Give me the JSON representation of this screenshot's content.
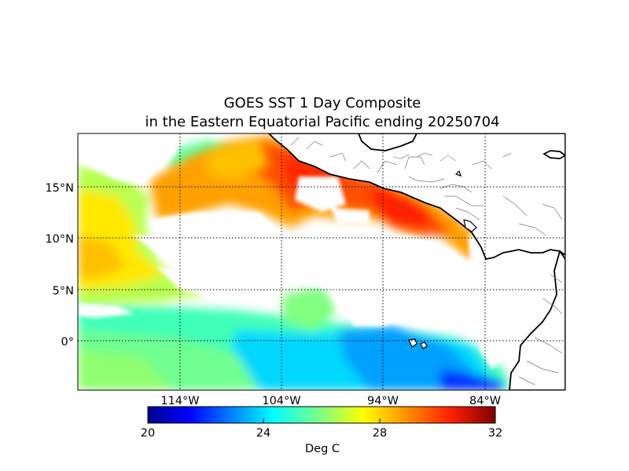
{
  "title": {
    "line1": "GOES SST 1 Day Composite",
    "line2": "in the Eastern Equatorial Pacific ending 20250704"
  },
  "axes": {
    "lat_ticks": [
      {
        "value": 15,
        "label": "15°N"
      },
      {
        "value": 10,
        "label": "10°N"
      },
      {
        "value": 5,
        "label": "5°N"
      },
      {
        "value": 0,
        "label": "0°"
      }
    ],
    "lon_ticks": [
      {
        "value": -114,
        "label": "114°W"
      },
      {
        "value": -104,
        "label": "104°W"
      },
      {
        "value": -94,
        "label": "94°W"
      },
      {
        "value": -84,
        "label": "84°W"
      }
    ],
    "grid": "dotted"
  },
  "colorbar": {
    "min": 20,
    "max": 32,
    "ticks": [
      {
        "value": 20,
        "label": "20"
      },
      {
        "value": 24,
        "label": "24"
      },
      {
        "value": 28,
        "label": "28"
      },
      {
        "value": 32,
        "label": "32"
      }
    ],
    "label": "Deg C",
    "colormap": "jet",
    "colors": [
      "#00008f",
      "#0000ff",
      "#0080ff",
      "#00ffff",
      "#80ff80",
      "#ffff00",
      "#ff8000",
      "#ff0000",
      "#800000"
    ]
  }
}
